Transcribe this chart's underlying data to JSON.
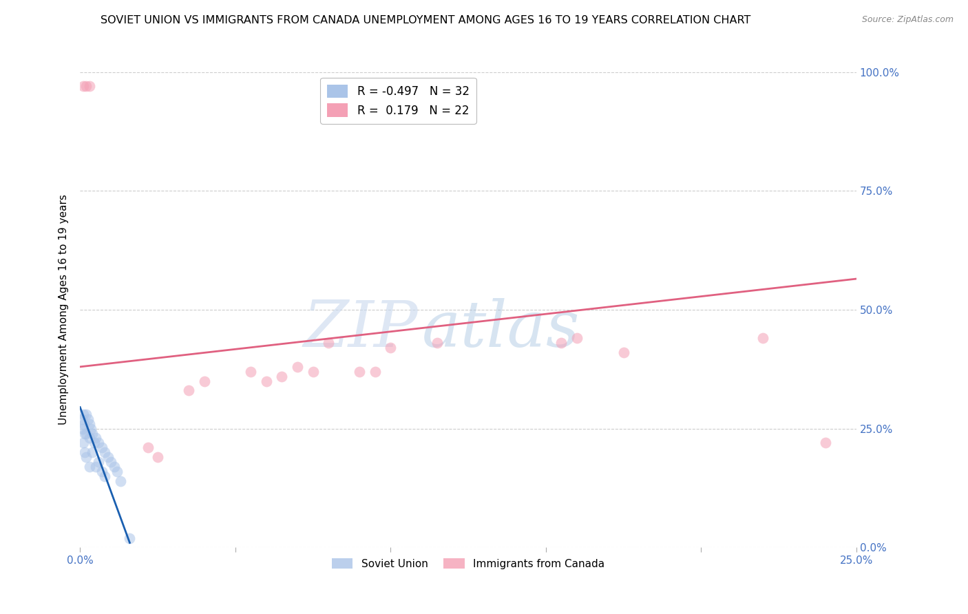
{
  "title": "SOVIET UNION VS IMMIGRANTS FROM CANADA UNEMPLOYMENT AMONG AGES 16 TO 19 YEARS CORRELATION CHART",
  "source": "Source: ZipAtlas.com",
  "ylabel": "Unemployment Among Ages 16 to 19 years",
  "xlim": [
    0.0,
    0.25
  ],
  "ylim": [
    0.0,
    1.0
  ],
  "xticks": [
    0.0,
    0.05,
    0.1,
    0.15,
    0.2,
    0.25
  ],
  "yticks": [
    0.0,
    0.25,
    0.5,
    0.75,
    1.0
  ],
  "ytick_labels_right": [
    "0.0%",
    "25.0%",
    "50.0%",
    "75.0%",
    "100.0%"
  ],
  "xtick_labels": [
    "0.0%",
    "",
    "",
    "",
    "",
    "25.0%"
  ],
  "blue_R": -0.497,
  "blue_N": 32,
  "pink_R": 0.179,
  "pink_N": 22,
  "blue_scatter_x": [
    0.0005,
    0.0008,
    0.001,
    0.001,
    0.0012,
    0.0015,
    0.0015,
    0.002,
    0.002,
    0.002,
    0.0025,
    0.003,
    0.003,
    0.003,
    0.0035,
    0.004,
    0.004,
    0.0045,
    0.005,
    0.005,
    0.006,
    0.006,
    0.007,
    0.007,
    0.008,
    0.008,
    0.009,
    0.01,
    0.011,
    0.012,
    0.013,
    0.016
  ],
  "blue_scatter_y": [
    0.27,
    0.25,
    0.28,
    0.22,
    0.26,
    0.24,
    0.2,
    0.28,
    0.24,
    0.19,
    0.27,
    0.26,
    0.23,
    0.17,
    0.25,
    0.24,
    0.2,
    0.22,
    0.23,
    0.17,
    0.22,
    0.18,
    0.21,
    0.16,
    0.2,
    0.15,
    0.19,
    0.18,
    0.17,
    0.16,
    0.14,
    0.02
  ],
  "pink_scatter_x": [
    0.001,
    0.002,
    0.003,
    0.022,
    0.025,
    0.035,
    0.04,
    0.055,
    0.06,
    0.065,
    0.07,
    0.075,
    0.08,
    0.115,
    0.155,
    0.175,
    0.22,
    0.09,
    0.095,
    0.1,
    0.16,
    0.24
  ],
  "pink_scatter_y": [
    0.97,
    0.97,
    0.97,
    0.21,
    0.19,
    0.33,
    0.35,
    0.37,
    0.35,
    0.36,
    0.38,
    0.37,
    0.43,
    0.43,
    0.43,
    0.41,
    0.44,
    0.37,
    0.37,
    0.42,
    0.44,
    0.22
  ],
  "blue_line_x": [
    0.0,
    0.016
  ],
  "blue_line_y": [
    0.295,
    0.01
  ],
  "pink_line_x": [
    0.0,
    0.25
  ],
  "pink_line_y": [
    0.38,
    0.565
  ],
  "watermark_zip": "ZIP",
  "watermark_atlas": "atlas",
  "scatter_size": 130,
  "scatter_alpha": 0.55,
  "blue_color": "#aac4e8",
  "blue_line_color": "#1a5fb0",
  "pink_color": "#f4a0b5",
  "pink_line_color": "#e06080",
  "grid_color": "#cccccc",
  "title_fontsize": 11.5,
  "axis_label_fontsize": 11,
  "tick_fontsize": 11,
  "tick_color": "#4472c4",
  "source_color": "#888888"
}
